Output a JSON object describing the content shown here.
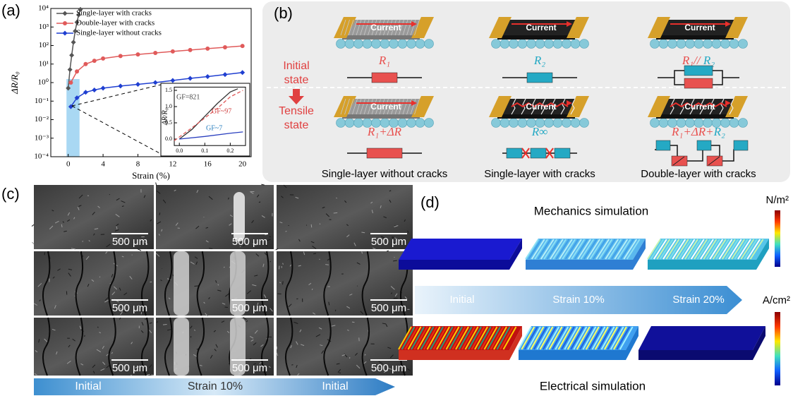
{
  "labels": {
    "a": "(a)",
    "b": "(b)",
    "c": "(c)",
    "d": "(d)"
  },
  "chart_data": {
    "type": "line",
    "x_label": "Strain (%)",
    "y_label": "ΔR/R₀",
    "xlim": [
      -2,
      21
    ],
    "xticks": [
      0,
      4,
      8,
      12,
      16,
      20
    ],
    "ylim": [
      0.0001,
      10000
    ],
    "log_y": true,
    "yticks": [
      {
        "value": 10000,
        "label": "10⁴"
      },
      {
        "value": 1000,
        "label": "10³"
      },
      {
        "value": 100,
        "label": "10²"
      },
      {
        "value": 10,
        "label": "10¹"
      },
      {
        "value": 1,
        "label": "10⁰"
      },
      {
        "value": 0.1,
        "label": "10⁻¹"
      },
      {
        "value": 0.01,
        "label": "10⁻²"
      },
      {
        "value": 0.001,
        "label": "10⁻³"
      },
      {
        "value": 0.0001,
        "label": "10⁻⁴"
      }
    ],
    "series": [
      {
        "name": "Single-layer with cracks",
        "color": "#555555",
        "marker": "diamond",
        "x": [
          0,
          0.2,
          0.4,
          0.6,
          0.8,
          1.0,
          1.2,
          1.4
        ],
        "values": [
          0.5,
          5,
          30,
          150,
          600,
          1800,
          4500,
          9000
        ]
      },
      {
        "name": "Double-layer with cracks",
        "color": "#e05a5a",
        "marker": "circle",
        "x": [
          0.3,
          1,
          2,
          3,
          4,
          6,
          8,
          10,
          12,
          14,
          16,
          18,
          20
        ],
        "values": [
          1,
          4,
          10,
          15,
          20,
          27,
          33,
          40,
          48,
          57,
          68,
          80,
          95
        ]
      },
      {
        "name": "Single-layer without cracks",
        "color": "#1f3fd1",
        "marker": "diamond",
        "x": [
          0.3,
          1,
          2,
          3,
          4,
          6,
          8,
          10,
          12,
          14,
          16,
          18,
          20
        ],
        "values": [
          0.05,
          0.15,
          0.3,
          0.4,
          0.5,
          0.65,
          0.8,
          1.0,
          1.3,
          1.7,
          2.1,
          2.7,
          3.5
        ]
      }
    ],
    "inset": {
      "type": "line",
      "y_label": "ΔR/R₀",
      "xlim": [
        -0.02,
        0.26
      ],
      "xticks": [
        {
          "value": 0,
          "label": "0.0"
        },
        {
          "value": 0.1,
          "label": "0.1"
        },
        {
          "value": 0.2,
          "label": "0.2"
        }
      ],
      "ylim": [
        -0.2,
        1.6
      ],
      "yticks": [
        {
          "value": 0,
          "label": "0.0"
        },
        {
          "value": 0.5,
          "label": "0.5"
        },
        {
          "value": 1,
          "label": "1.0"
        },
        {
          "value": 1.5,
          "label": "1.5"
        }
      ],
      "annotations": [
        {
          "text": "GF=821",
          "color": "#444444"
        },
        {
          "text": "GF~97",
          "color": "#d04040"
        },
        {
          "text": "GF~7",
          "color": "#2a7fbf"
        }
      ],
      "series": [
        {
          "color": "#333333",
          "dash": false,
          "x": [
            0,
            0.05,
            0.1,
            0.15,
            0.2,
            0.23
          ],
          "values": [
            0,
            0.3,
            0.7,
            1.1,
            1.45,
            1.55
          ]
        },
        {
          "color": "#e05a5a",
          "dash": true,
          "x": [
            -0.02,
            0.05,
            0.1,
            0.15,
            0.2,
            0.25
          ],
          "values": [
            -0.05,
            0.35,
            0.65,
            0.95,
            1.3,
            1.5
          ]
        },
        {
          "color": "#2a3fbf",
          "dash": false,
          "x": [
            0,
            0.1,
            0.2,
            0.25
          ],
          "values": [
            0,
            0.08,
            0.18,
            0.22
          ]
        }
      ]
    }
  },
  "panel_b": {
    "initial_state": [
      "Initial",
      "state"
    ],
    "tensile_state": [
      "Tensile",
      "state"
    ],
    "currents": [
      "Current",
      "Current",
      "Current",
      "Current",
      "Current",
      "Current"
    ],
    "formulas": [
      [
        {
          "text": "R₁",
          "color": "#e8514f"
        }
      ],
      [
        {
          "text": "R₂",
          "color": "#25a9c4"
        }
      ],
      [
        {
          "text": "R₁// ",
          "color": "#e8514f"
        },
        {
          "text": "R₂",
          "color": "#25a9c4"
        }
      ],
      [
        {
          "text": "R₁+ΔR",
          "color": "#e8514f"
        }
      ],
      [
        {
          "text": "R∞",
          "color": "#25a9c4"
        }
      ],
      [
        {
          "text": "R₁+ΔR+",
          "color": "#e8514f"
        },
        {
          "text": "R₂",
          "color": "#25a9c4"
        }
      ]
    ],
    "captions": [
      "Single-layer without cracks",
      "Single-layer with cracks",
      "Double-layer with cracks"
    ]
  },
  "panel_c": {
    "scale_bars": [
      "500 μm",
      "500 μm",
      "500 μm",
      "500 μm",
      "500 μm",
      "500 μm",
      "500 μm",
      "500 μm",
      "500 μm"
    ],
    "arrow_labels": [
      "Initial",
      "Strain 10%",
      "Initial"
    ]
  },
  "panel_d": {
    "top_title": "Mechanics simulation",
    "bottom_title": "Electrical simulation",
    "units": [
      "N/m²",
      "A/cm²"
    ],
    "arrow_labels": [
      "Initial",
      "Strain 10%",
      "Strain 20%"
    ]
  }
}
